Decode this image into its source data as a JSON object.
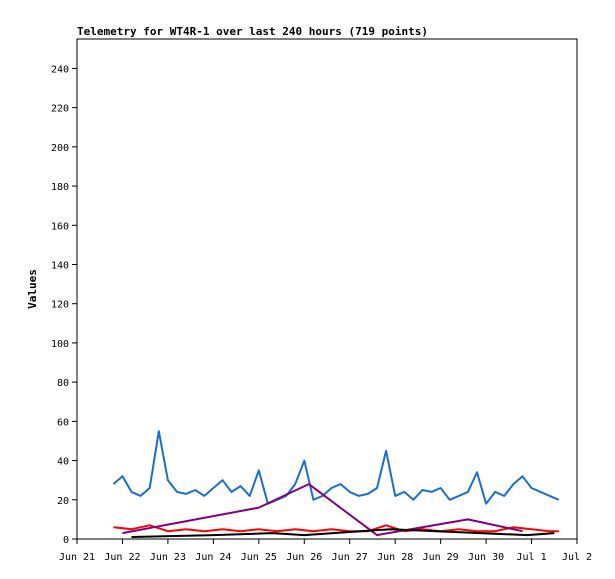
{
  "chart_data": {
    "type": "line",
    "title": "Telemetry for WT4R-1 over last 240 hours (719 points)",
    "xlabel": "",
    "ylabel": "Values",
    "ylim": [
      0,
      255
    ],
    "y_ticks": [
      0,
      20,
      40,
      60,
      80,
      100,
      120,
      140,
      160,
      180,
      200,
      220,
      240
    ],
    "x_range_days": [
      21,
      32
    ],
    "x_ticks": [
      {
        "day": 21,
        "label": "Jun 21"
      },
      {
        "day": 22,
        "label": "Jun 22"
      },
      {
        "day": 23,
        "label": "Jun 23"
      },
      {
        "day": 24,
        "label": "Jun 24"
      },
      {
        "day": 25,
        "label": "Jun 25"
      },
      {
        "day": 26,
        "label": "Jun 26"
      },
      {
        "day": 27,
        "label": "Jun 27"
      },
      {
        "day": 28,
        "label": "Jun 28"
      },
      {
        "day": 29,
        "label": "Jun 29"
      },
      {
        "day": 30,
        "label": "Jun 30"
      },
      {
        "day": 31,
        "label": "Jul 1"
      },
      {
        "day": 32,
        "label": "Jul 2"
      }
    ],
    "grid": false,
    "series": [
      {
        "color": "#1a6ecf",
        "x": [
          21.8,
          22.0,
          22.2,
          22.4,
          22.6,
          22.8,
          23.0,
          23.2,
          23.4,
          23.6,
          23.8,
          24.0,
          24.2,
          24.4,
          24.6,
          24.8,
          25.0,
          25.2,
          25.4,
          25.6,
          25.8,
          26.0,
          26.2,
          26.4,
          26.6,
          26.8,
          27.0,
          27.2,
          27.4,
          27.6,
          27.8,
          28.0,
          28.2,
          28.4,
          28.6,
          28.8,
          29.0,
          29.2,
          29.4,
          29.6,
          29.8,
          30.0,
          30.2,
          30.4,
          30.6,
          30.8,
          31.0,
          31.2,
          31.4,
          31.6
        ],
        "values": [
          28,
          32,
          24,
          22,
          26,
          55,
          30,
          24,
          23,
          25,
          22,
          26,
          30,
          24,
          27,
          22,
          35,
          18,
          20,
          22,
          28,
          40,
          20,
          22,
          26,
          28,
          24,
          22,
          23,
          26,
          45,
          22,
          24,
          20,
          25,
          24,
          26,
          20,
          22,
          24,
          34,
          18,
          24,
          22,
          28,
          32,
          26,
          24,
          22,
          20
        ]
      },
      {
        "color": "#ff0000",
        "x": [
          21.8,
          22.2,
          22.6,
          23.0,
          23.4,
          23.8,
          24.2,
          24.6,
          25.0,
          25.4,
          25.8,
          26.2,
          26.6,
          27.0,
          27.4,
          27.8,
          28.2,
          28.6,
          29.0,
          29.4,
          29.8,
          30.2,
          30.6,
          31.0,
          31.4,
          31.6
        ],
        "values": [
          6,
          5,
          7,
          4,
          5,
          4,
          5,
          4,
          5,
          4,
          5,
          4,
          5,
          4,
          4,
          7,
          4,
          5,
          4,
          5,
          4,
          4,
          6,
          5,
          4,
          4
        ]
      },
      {
        "color": "#800080",
        "x": [
          22.0,
          25.0,
          26.1,
          27.6,
          29.6,
          30.8
        ],
        "values": [
          3,
          16,
          28,
          2,
          10,
          4
        ]
      },
      {
        "color": "#000000",
        "x": [
          22.2,
          24.0,
          25.3,
          26.0,
          27.9,
          30.9,
          31.5
        ],
        "values": [
          1,
          2,
          3,
          2,
          5,
          2,
          3
        ]
      }
    ]
  }
}
